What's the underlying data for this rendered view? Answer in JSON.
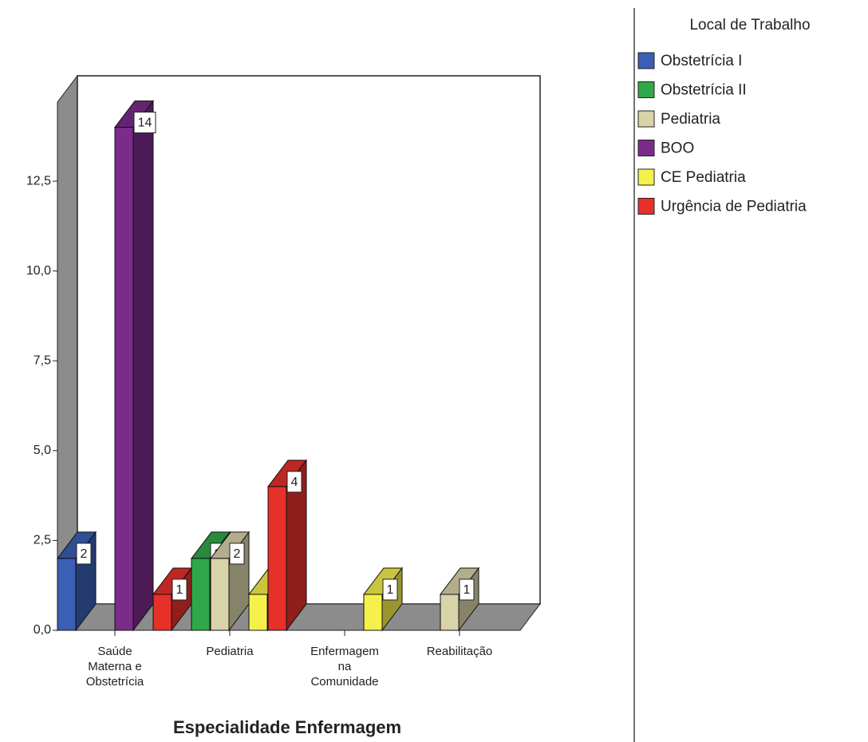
{
  "chart_data": {
    "type": "bar3d",
    "x_label": "Especialidade Enfermagem",
    "legend_title": "Local de Trabalho",
    "legend": "right",
    "categories": [
      "Saúde Materna e Obstetrícia",
      "Pediatria",
      "Enfermagem na Comunidade",
      "Reabilitação"
    ],
    "series": [
      {
        "name": "Obstetrícia I",
        "color": "#3a5fb4",
        "values": [
          2,
          null,
          null,
          null
        ]
      },
      {
        "name": "Obstetrícia II",
        "color": "#2fa84a",
        "values": [
          null,
          2,
          null,
          null
        ]
      },
      {
        "name": "Pediatria",
        "color": "#d9d3a9",
        "values": [
          null,
          2,
          null,
          1
        ]
      },
      {
        "name": "BOO",
        "color": "#7b2c8b",
        "values": [
          14,
          null,
          null,
          null
        ]
      },
      {
        "name": "CE Pediatria",
        "color": "#f6f04c",
        "values": [
          null,
          1,
          1,
          null
        ]
      },
      {
        "name": "Urgência de Pediatria",
        "color": "#e8302b",
        "values": [
          1,
          4,
          null,
          null
        ]
      }
    ],
    "ylim": [
      0,
      14.7
    ],
    "yticks": [
      {
        "value": 0,
        "label": "0,0"
      },
      {
        "value": 2.5,
        "label": "2,5"
      },
      {
        "value": 5,
        "label": "5,0"
      },
      {
        "value": 7.5,
        "label": "7,5"
      },
      {
        "value": 10,
        "label": "10,0"
      },
      {
        "value": 12.5,
        "label": "12,5"
      }
    ]
  }
}
